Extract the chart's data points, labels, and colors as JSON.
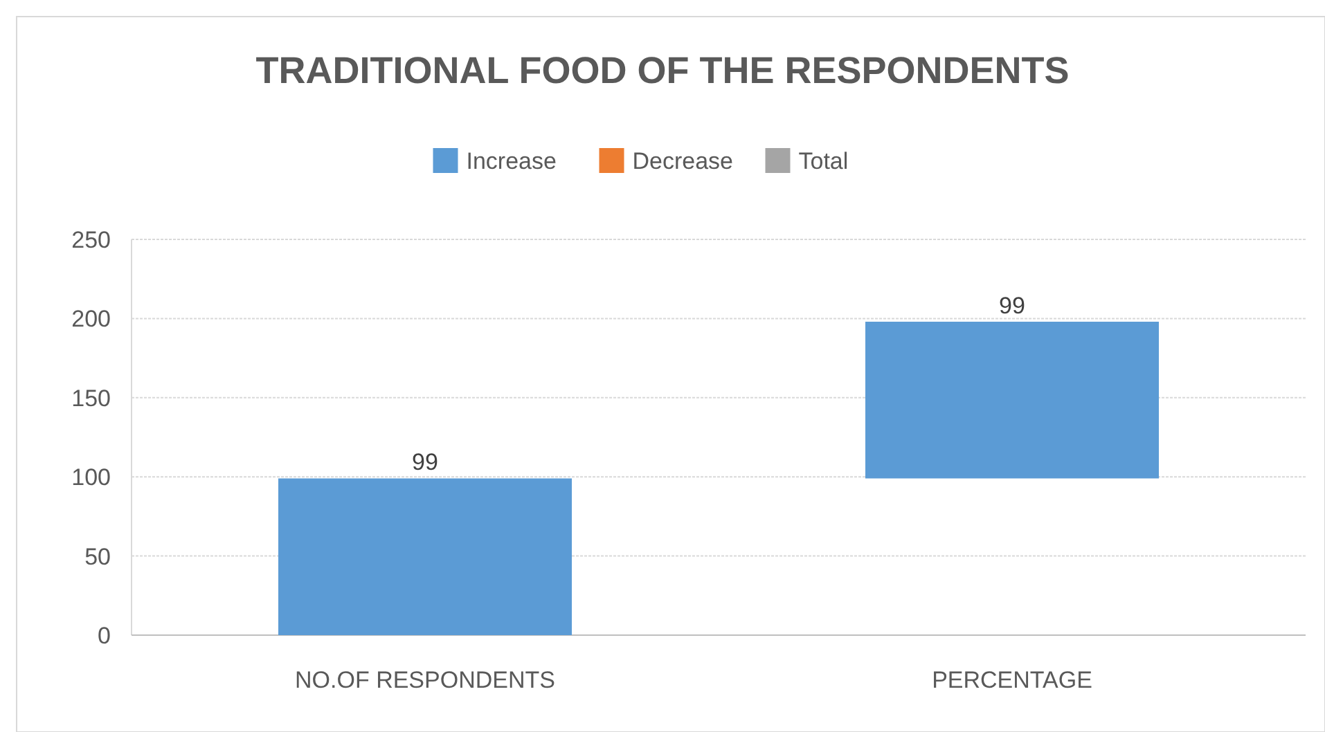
{
  "chart_data": {
    "type": "bar",
    "title": "TRADITIONAL FOOD OF THE RESPONDENTS",
    "categories": [
      "NO.OF RESPONDENTS",
      "PERCENTAGE"
    ],
    "series": [
      {
        "name": "Increase",
        "color": "#5b9bd5",
        "values": [
          99,
          99
        ],
        "base": [
          0,
          99
        ]
      },
      {
        "name": "Decrease",
        "color": "#ed7d31",
        "values": [
          null,
          null
        ]
      },
      {
        "name": "Total",
        "color": "#a5a5a5",
        "values": [
          null,
          null
        ]
      }
    ],
    "ylim": [
      0,
      250
    ],
    "yticks": [
      0,
      50,
      100,
      150,
      200,
      250
    ],
    "grid": "y",
    "legend": "top",
    "data_labels": true
  }
}
